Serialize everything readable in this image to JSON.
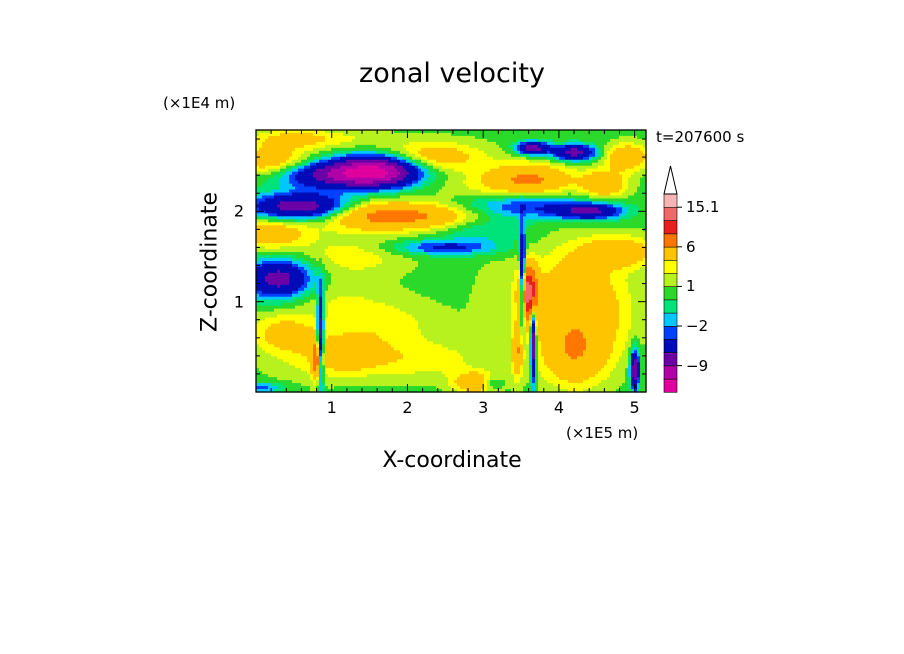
{
  "chart_data": {
    "type": "heatmap",
    "title": "zonal velocity",
    "xlabel": "X-coordinate",
    "ylabel": "Z-coordinate",
    "x_unit_label": "(×1E5 m)",
    "y_unit_label": "(×1E4 m)",
    "time_label": "t=207600 s",
    "xlim": [
      0,
      5.15
    ],
    "ylim": [
      0,
      2.9
    ],
    "x_ticks": [
      1,
      2,
      3,
      4,
      5
    ],
    "y_ticks": [
      1,
      2
    ],
    "grid": false,
    "colorbar": {
      "position": "right",
      "extend": "max",
      "levels": [
        -15,
        -12,
        -9,
        -6,
        -3,
        -2,
        -1,
        0,
        1,
        2,
        3,
        6,
        9,
        12,
        15.1
      ],
      "colors": [
        "#e0009e",
        "#b100a8",
        "#6a00a6",
        "#000bb8",
        "#0040ff",
        "#00c8ff",
        "#00e37a",
        "#2bd92b",
        "#b8f21e",
        "#ffff00",
        "#ffc400",
        "#ff7700",
        "#e81f1f",
        "#f06868",
        "#f6b4b4"
      ],
      "extend_color": "#ffffff",
      "tick_labels": [
        {
          "value": -9,
          "label": "−9"
        },
        {
          "value": -2,
          "label": "−2"
        },
        {
          "value": 1,
          "label": "1"
        },
        {
          "value": 6,
          "label": "6"
        },
        {
          "value": 15.1,
          "label": "15.1"
        }
      ]
    },
    "features": [
      {
        "x": 0.2,
        "z": 1.75,
        "value": 4,
        "sx": 0.35,
        "sz": 0.12
      },
      {
        "x": 0.3,
        "z": 1.25,
        "value": -8,
        "sx": 0.3,
        "sz": 0.15
      },
      {
        "x": 0.2,
        "z": 2.55,
        "value": 4,
        "sx": 0.35,
        "sz": 0.12
      },
      {
        "x": 0.35,
        "z": 0.65,
        "value": 3,
        "sx": 0.3,
        "sz": 0.15
      },
      {
        "x": 0.6,
        "z": 0.35,
        "value": 1,
        "sx": 0.4,
        "sz": 0.2
      },
      {
        "x": 0.85,
        "z": 0.6,
        "value": -10,
        "sx": 0.03,
        "sz": 0.35
      },
      {
        "x": 0.8,
        "z": 0.35,
        "value": 7,
        "sx": 0.04,
        "sz": 0.15
      },
      {
        "x": 1.2,
        "z": 0.4,
        "value": 3,
        "sx": 0.35,
        "sz": 0.15
      },
      {
        "x": 1.3,
        "z": 1.5,
        "value": 2,
        "sx": 0.5,
        "sz": 0.15
      },
      {
        "x": 1.0,
        "z": 1.05,
        "value": 1,
        "sx": 0.5,
        "sz": 0.15
      },
      {
        "x": 1.6,
        "z": 0.75,
        "value": 2,
        "sx": 0.6,
        "sz": 0.2
      },
      {
        "x": 2.2,
        "z": 0.35,
        "value": 2,
        "sx": 0.6,
        "sz": 0.15
      },
      {
        "x": 2.9,
        "z": 0.1,
        "value": 5,
        "sx": 0.2,
        "sz": 0.08
      },
      {
        "x": 1.0,
        "z": 2.4,
        "value": -7,
        "sx": 0.5,
        "sz": 0.1
      },
      {
        "x": 1.6,
        "z": 2.45,
        "value": -12,
        "sx": 0.4,
        "sz": 0.12
      },
      {
        "x": 0.6,
        "z": 2.05,
        "value": -9,
        "sx": 0.45,
        "sz": 0.1
      },
      {
        "x": 2.1,
        "z": 1.95,
        "value": 5,
        "sx": 0.7,
        "sz": 0.1
      },
      {
        "x": 1.5,
        "z": 1.95,
        "value": 3,
        "sx": 0.5,
        "sz": 0.12
      },
      {
        "x": 2.5,
        "z": 1.6,
        "value": -4,
        "sx": 0.5,
        "sz": 0.06
      },
      {
        "x": 2.3,
        "z": 2.6,
        "value": 4,
        "sx": 0.5,
        "sz": 0.12
      },
      {
        "x": 3.6,
        "z": 2.35,
        "value": 6,
        "sx": 0.4,
        "sz": 0.12
      },
      {
        "x": 3.5,
        "z": 2.05,
        "value": -4,
        "sx": 0.6,
        "sz": 0.1
      },
      {
        "x": 3.65,
        "z": 2.7,
        "value": -8,
        "sx": 0.15,
        "sz": 0.05
      },
      {
        "x": 4.2,
        "z": 2.65,
        "value": -8,
        "sx": 0.2,
        "sz": 0.06
      },
      {
        "x": 4.4,
        "z": 2.0,
        "value": -7,
        "sx": 0.3,
        "sz": 0.06
      },
      {
        "x": 4.6,
        "z": 2.3,
        "value": 5,
        "sx": 0.2,
        "sz": 0.1
      },
      {
        "x": 4.8,
        "z": 1.55,
        "value": 4,
        "sx": 0.35,
        "sz": 0.12
      },
      {
        "x": 4.9,
        "z": 2.6,
        "value": 5,
        "sx": 0.2,
        "sz": 0.1
      },
      {
        "x": 3.6,
        "z": 1.1,
        "value": 12,
        "sx": 0.08,
        "sz": 0.2
      },
      {
        "x": 3.52,
        "z": 1.25,
        "value": -10,
        "sx": 0.025,
        "sz": 0.35
      },
      {
        "x": 3.66,
        "z": 0.55,
        "value": -10,
        "sx": 0.025,
        "sz": 0.3
      },
      {
        "x": 3.45,
        "z": 0.45,
        "value": 5,
        "sx": 0.05,
        "sz": 0.2
      },
      {
        "x": 3.2,
        "z": 1.05,
        "value": 1,
        "sx": 0.25,
        "sz": 0.3
      },
      {
        "x": 4.1,
        "z": 1.0,
        "value": 4,
        "sx": 0.35,
        "sz": 0.4
      },
      {
        "x": 4.2,
        "z": 0.4,
        "value": 4,
        "sx": 0.3,
        "sz": 0.25
      },
      {
        "x": 4.65,
        "z": 0.9,
        "value": 2,
        "sx": 0.3,
        "sz": 0.4
      },
      {
        "x": 5.0,
        "z": 0.25,
        "value": -10,
        "sx": 0.04,
        "sz": 0.15
      },
      {
        "x": 3.1,
        "z": 0.1,
        "value": -3,
        "sx": 0.1,
        "sz": 0.05
      },
      {
        "x": 0.1,
        "z": 0.05,
        "value": -3,
        "sx": 0.2,
        "sz": 0.04
      },
      {
        "x": 0.5,
        "z": 2.8,
        "value": 3,
        "sx": 0.4,
        "sz": 0.08
      },
      {
        "x": 1.3,
        "z": 2.8,
        "value": 1,
        "sx": 0.4,
        "sz": 0.08
      },
      {
        "x": 2.8,
        "z": 2.25,
        "value": 1,
        "sx": 0.4,
        "sz": 0.1
      },
      {
        "x": 3.0,
        "z": 1.8,
        "value": -2,
        "sx": 0.4,
        "sz": 0.1
      }
    ]
  }
}
